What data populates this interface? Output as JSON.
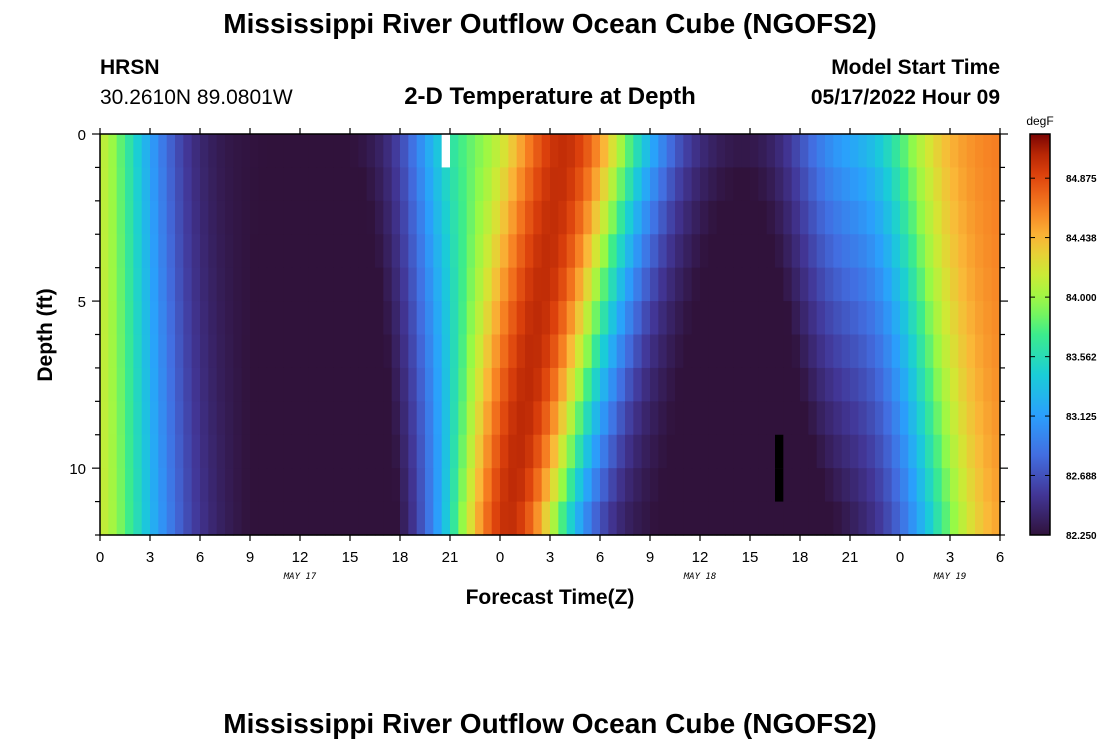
{
  "header": {
    "title": "Mississippi River Outflow Ocean Cube (NGOFS2)",
    "station_id": "HRSN",
    "station_coords": "30.2610N  89.0801W",
    "plot_title": "2-D Temperature at Depth",
    "start_label": "Model Start Time",
    "start_value": "05/17/2022 Hour 09"
  },
  "footer": {
    "title": "Mississippi River Outflow Ocean Cube (NGOFS2)"
  },
  "chart_data": {
    "type": "heatmap",
    "title": "2-D Temperature at Depth",
    "xlabel": "Forecast Time(Z)",
    "ylabel": "Depth (ft)",
    "x_range_hours": [
      0,
      54
    ],
    "ylim": [
      0,
      12
    ],
    "x_tick_labels": [
      "0",
      "3",
      "6",
      "9",
      "12",
      "15",
      "18",
      "21",
      "0",
      "3",
      "6",
      "9",
      "12",
      "15",
      "18",
      "21",
      "0",
      "3",
      "6"
    ],
    "x_tick_hours": [
      0,
      3,
      6,
      9,
      12,
      15,
      18,
      21,
      24,
      27,
      30,
      33,
      36,
      39,
      42,
      45,
      48,
      51,
      54
    ],
    "date_labels": [
      {
        "text": "MAY 17",
        "hour": 12
      },
      {
        "text": "MAY 18",
        "hour": 36
      },
      {
        "text": "MAY 19",
        "hour": 51
      }
    ],
    "y_ticks": [
      0,
      5,
      10
    ],
    "y_tick_labels": [
      "0",
      "5",
      "10"
    ],
    "colorbar": {
      "unit": "degF",
      "min": 82.25,
      "max": 85.2,
      "tick_values": [
        82.25,
        82.688,
        83.125,
        83.562,
        84.0,
        84.438,
        84.875
      ],
      "tick_labels": [
        "82.250",
        "82.688",
        "83.125",
        "83.562",
        "84.000",
        "84.438",
        "84.875"
      ]
    },
    "grid": {
      "hour_step": 0.5,
      "depth_levels": 12,
      "missing": [
        {
          "hour": 20.5,
          "depth_level": 0,
          "color": "#ffffff"
        },
        {
          "hour": 40.5,
          "depth_level": 9,
          "color": "#000000"
        },
        {
          "hour": 40.5,
          "depth_level": 10,
          "color": "#000000"
        }
      ]
    },
    "model": {
      "base_temp": 82.25,
      "warm_bands": [
        {
          "center_hour": 0,
          "width_hours": 4,
          "amplitude": 2.0
        },
        {
          "center_hour": 27,
          "width_hours": 6,
          "amplitude": 2.9
        },
        {
          "center_hour": 54,
          "width_hours": 4,
          "amplitude": 2.4
        }
      ],
      "cold_centers": [
        {
          "center_hour": 13,
          "shallow_offset": 0,
          "deep_offset": 0
        },
        {
          "center_hour": 39,
          "shallow_offset": 0,
          "deep_offset": 0
        }
      ]
    }
  }
}
